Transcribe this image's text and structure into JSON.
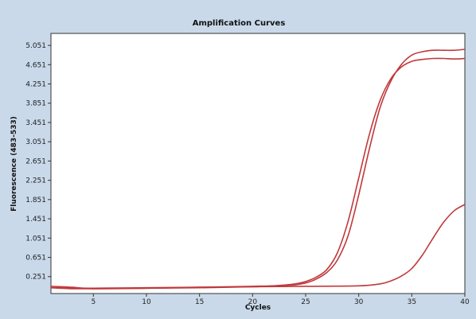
{
  "chart_data": {
    "type": "line",
    "title": "Amplification Curves",
    "xlabel": "Cycles",
    "ylabel": "Fluorescence (483-533)",
    "xlim": [
      1,
      40
    ],
    "ylim": [
      -0.1,
      5.3
    ],
    "x_ticks": [
      5,
      10,
      15,
      20,
      25,
      30,
      35,
      40
    ],
    "y_ticks": [
      0.251,
      0.651,
      1.051,
      1.451,
      1.851,
      2.251,
      2.651,
      3.051,
      3.451,
      3.851,
      4.251,
      4.651,
      5.051
    ],
    "y_tick_labels": [
      "0.251",
      "0.651",
      "1.051",
      "1.451",
      "1.851",
      "2.251",
      "2.651",
      "3.051",
      "3.451",
      "3.851",
      "4.251",
      "4.651",
      "5.051"
    ],
    "grid": false,
    "series": [
      {
        "color": "#c0393b",
        "x": [
          1,
          3,
          5,
          10,
          15,
          20,
          22,
          24,
          25,
          26,
          27,
          28,
          29,
          30,
          31,
          32,
          33,
          34,
          35,
          36,
          37,
          38,
          39,
          40
        ],
        "y": [
          0.02,
          0.0,
          0.0,
          0.01,
          0.02,
          0.04,
          0.06,
          0.1,
          0.15,
          0.24,
          0.4,
          0.75,
          1.4,
          2.3,
          3.2,
          3.9,
          4.35,
          4.6,
          4.72,
          4.76,
          4.78,
          4.78,
          4.77,
          4.78
        ]
      },
      {
        "color": "#c0393b",
        "x": [
          1,
          3,
          5,
          10,
          15,
          20,
          22,
          24,
          25,
          26,
          27,
          28,
          29,
          30,
          31,
          32,
          33,
          34,
          35,
          36,
          37,
          38,
          39,
          40
        ],
        "y": [
          0.05,
          0.03,
          0.0,
          0.01,
          0.03,
          0.05,
          0.06,
          0.08,
          0.12,
          0.2,
          0.34,
          0.6,
          1.1,
          1.95,
          2.9,
          3.75,
          4.3,
          4.65,
          4.85,
          4.92,
          4.95,
          4.95,
          4.95,
          4.97
        ]
      },
      {
        "color": "#c0393b",
        "x": [
          1,
          5,
          10,
          15,
          20,
          25,
          30,
          32,
          33,
          34,
          35,
          36,
          37,
          38,
          39,
          40
        ],
        "y": [
          0.02,
          0.01,
          0.02,
          0.03,
          0.04,
          0.05,
          0.06,
          0.1,
          0.16,
          0.26,
          0.42,
          0.7,
          1.05,
          1.38,
          1.62,
          1.75
        ]
      }
    ]
  }
}
